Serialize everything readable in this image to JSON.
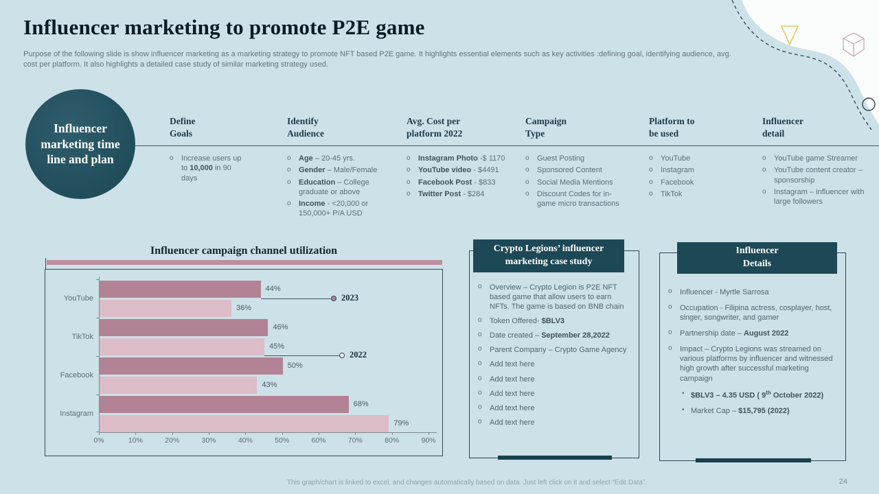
{
  "slide": {
    "title": "Influencer marketing to promote P2E game",
    "subtitle": "Purpose of the following slide is show influencer marketing as a marketing strategy to promote NFT based P2E game. It highlights essential elements such as key activities :defining goal, identifying audience, avg. cost per platform. It also highlights a detailed case study of similar marketing strategy used.",
    "footer_note": "This graph/chart is linked to excel,  and changes automatically based on data. Just left click on it and select “Edit Data”.",
    "page_number": "24"
  },
  "badge": {
    "label": "Influencer marketing time line and plan"
  },
  "columns": [
    {
      "header": "Define\nGoals",
      "items": [
        {
          "segs": [
            {
              "t": "Increase users up to "
            },
            {
              "t": "10,000",
              "b": true
            },
            {
              "t": " in 90 days"
            }
          ]
        }
      ]
    },
    {
      "header": "Identify\nAudience",
      "items": [
        {
          "segs": [
            {
              "t": "Age",
              "b": true
            },
            {
              "t": " – 20-45 yrs."
            }
          ]
        },
        {
          "segs": [
            {
              "t": "Gender",
              "b": true
            },
            {
              "t": " – Male/Female"
            }
          ]
        },
        {
          "segs": [
            {
              "t": "Education",
              "b": true
            },
            {
              "t": " – College graduate or above"
            }
          ]
        },
        {
          "segs": [
            {
              "t": "Income",
              "b": true
            },
            {
              "t": " - <20,000 or 150,000+ P/A USD"
            }
          ]
        }
      ]
    },
    {
      "header": "Avg. Cost per\nplatform 2022",
      "items": [
        {
          "segs": [
            {
              "t": "Instagram Photo",
              "b": true
            },
            {
              "t": " -$ 1170"
            }
          ]
        },
        {
          "segs": [
            {
              "t": "YouTube  video",
              "b": true
            },
            {
              "t": " - $4491"
            }
          ]
        },
        {
          "segs": [
            {
              "t": "Facebook Post",
              "b": true
            },
            {
              "t": " -  $833"
            }
          ]
        },
        {
          "segs": [
            {
              "t": "Twitter Post",
              "b": true
            },
            {
              "t": " - $284"
            }
          ]
        }
      ]
    },
    {
      "header": "Campaign\nType",
      "items": [
        {
          "segs": [
            {
              "t": "Guest Posting"
            }
          ]
        },
        {
          "segs": [
            {
              "t": "Sponsored Content"
            }
          ]
        },
        {
          "segs": [
            {
              "t": "Social Media Mentions"
            }
          ]
        },
        {
          "segs": [
            {
              "t": "Discount Codes for in-game micro transactions"
            }
          ]
        }
      ]
    },
    {
      "header": "Platform to\nbe used",
      "items": [
        {
          "segs": [
            {
              "t": "YouTube"
            }
          ]
        },
        {
          "segs": [
            {
              "t": "Instagram"
            }
          ]
        },
        {
          "segs": [
            {
              "t": "Facebook"
            }
          ]
        },
        {
          "segs": [
            {
              "t": "TikTok"
            }
          ]
        }
      ]
    },
    {
      "header": "Influencer\ndetail",
      "items": [
        {
          "segs": [
            {
              "t": "YouTube game Streamer"
            }
          ]
        },
        {
          "segs": [
            {
              "t": "YouTube content creator – sponsorship"
            }
          ]
        },
        {
          "segs": [
            {
              "t": "Instagram – influencer with large followers"
            }
          ]
        }
      ]
    }
  ],
  "chart_data": {
    "type": "bar",
    "orientation": "horizontal",
    "title": "Influencer campaign channel utilization",
    "categories": [
      "YouTube",
      "TikTok",
      "Facebook",
      "Instagram"
    ],
    "series": [
      {
        "name": "2023",
        "values": [
          44,
          46,
          50,
          68
        ],
        "color": "#b28394"
      },
      {
        "name": "2022",
        "values": [
          36,
          45,
          43,
          79
        ],
        "color": "#dcbcc7"
      }
    ],
    "value_suffix": "%",
    "xlim": [
      0,
      90
    ],
    "x_ticks": [
      "0%",
      "10%",
      "20%",
      "30%",
      "40%",
      "50%",
      "60%",
      "70%",
      "80%",
      "90%"
    ],
    "grid": false,
    "legend_position": "right-callouts"
  },
  "case_study": {
    "title": "Crypto Legions’ influencer\nmarketing case study",
    "items": [
      {
        "segs": [
          {
            "t": "Overview – Crypto Legion is P2E NFT based game that allow users to earn NFTs. The game is based on BNB chain"
          }
        ]
      },
      {
        "segs": [
          {
            "t": "Token Offered- "
          },
          {
            "t": "$BLV3",
            "b": true
          }
        ]
      },
      {
        "segs": [
          {
            "t": "Date created – "
          },
          {
            "t": "September 28,2022",
            "b": true
          }
        ]
      },
      {
        "segs": [
          {
            "t": "Parent Company – Crypto Game Agency"
          }
        ]
      },
      {
        "segs": [
          {
            "t": "Add text here"
          }
        ]
      },
      {
        "segs": [
          {
            "t": "Add text here"
          }
        ]
      },
      {
        "segs": [
          {
            "t": "Add text here"
          }
        ]
      },
      {
        "segs": [
          {
            "t": "Add text here"
          }
        ]
      },
      {
        "segs": [
          {
            "t": "Add text here"
          }
        ]
      }
    ]
  },
  "influencer_details": {
    "title": "Influencer\nDetails",
    "items": [
      {
        "segs": [
          {
            "t": "Influencer - Myrtle  Sarrosa"
          }
        ]
      },
      {
        "segs": [
          {
            "t": "Occupation - Filipina actress, cosplayer, host, singer, songwriter, and gamer"
          }
        ]
      },
      {
        "segs": [
          {
            "t": "Partnership date – "
          },
          {
            "t": "August  2022",
            "b": true
          }
        ]
      },
      {
        "segs": [
          {
            "t": "Impact – Crypto Legions was streamed on various platforms by influencer and witnessed high growth after  successful marketing campaign"
          }
        ]
      },
      {
        "sub": true,
        "segs": [
          {
            "t": "$BLV3 – 4.35 USD  ( 9",
            "b": true
          },
          {
            "t": "th",
            "b": true,
            "sup": true
          },
          {
            "t": " October 2022)",
            "b": true
          }
        ]
      },
      {
        "sub": true,
        "segs": [
          {
            "t": "Market Cap – "
          },
          {
            "t": "$15,795 (2022)",
            "b": true
          }
        ]
      }
    ]
  },
  "colors": {
    "background": "#cde1e8",
    "dark_teal": "#1d4856",
    "bar_2023": "#b28394",
    "bar_2022": "#dcbcc7",
    "accent_strip": "#bf8e9d",
    "triangle_icon": "#e9c95f",
    "cube_icon": "#c9a2b0"
  }
}
